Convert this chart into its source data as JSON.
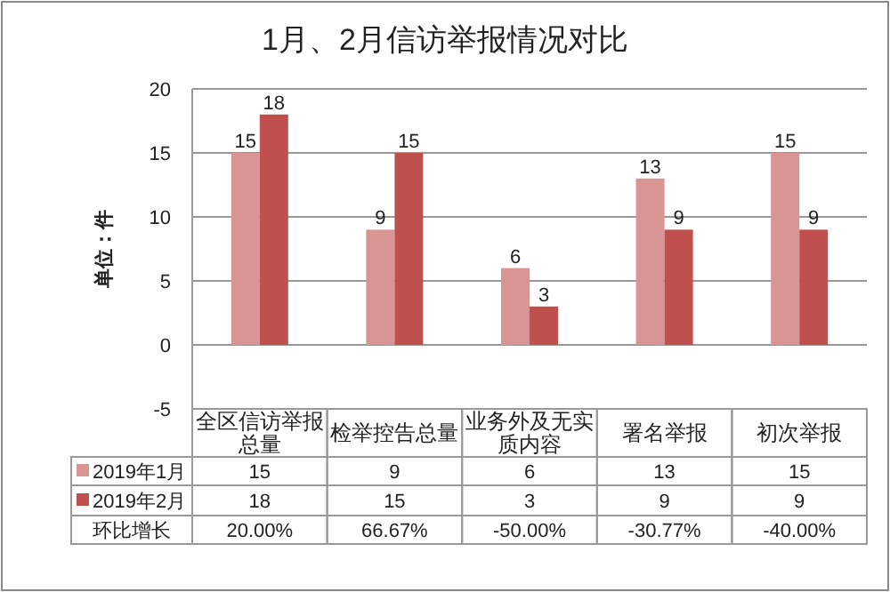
{
  "chart_data": {
    "type": "bar",
    "title": "1月、2月信访举报情况对比",
    "ylabel": "单位：件",
    "categories": [
      "全区信访举报总量",
      "检举控告总量",
      "业务外及无实质内容",
      "署名举报",
      "初次举报"
    ],
    "series": [
      {
        "name": "2019年1月",
        "color": "#d99594",
        "values": [
          15,
          9,
          6,
          13,
          15
        ],
        "value_labels": [
          "15",
          "9",
          "6",
          "13",
          "15"
        ]
      },
      {
        "name": "2019年2月",
        "color": "#c0504d",
        "values": [
          18,
          15,
          3,
          9,
          9
        ],
        "value_labels": [
          "18",
          "15",
          "3",
          "9",
          "9"
        ]
      }
    ],
    "ylim": [
      -5,
      20
    ],
    "yticks": [
      -5,
      0,
      5,
      10,
      15,
      20
    ],
    "grid": "y",
    "data_labels": true,
    "legend": "bottom",
    "annotations": [
      "环比增长",
      "20.00%",
      "66.67%",
      "-50.00%",
      "-30.77%",
      "-40.00%"
    ]
  }
}
